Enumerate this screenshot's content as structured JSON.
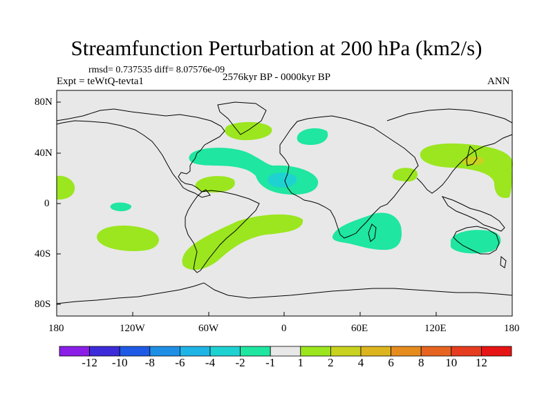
{
  "header": {
    "title": "Streamfunction Perturbation at 200 hPa (km2/s)",
    "stats": "rmsd= 0.737535 diff= 8.07576e-09",
    "left_label": "Expt = teWtQ-tevta1",
    "center_label": "2576kyr BP - 0000kyr BP",
    "right_label": "ANN"
  },
  "axes": {
    "lat_labels": [
      "80N",
      "40N",
      "0",
      "40S",
      "80S"
    ],
    "lon_labels": [
      "180",
      "120W",
      "60W",
      "0",
      "60E",
      "120E",
      "180"
    ]
  },
  "colorbar": {
    "labels": [
      "-12",
      "-10",
      "-8",
      "-6",
      "-4",
      "-2",
      "-1",
      "1",
      "2",
      "4",
      "6",
      "8",
      "10",
      "12"
    ],
    "colors": [
      "#8a1ee6",
      "#3c2bd9",
      "#1f5ae6",
      "#1f8fe6",
      "#1fb4e6",
      "#1fd2d2",
      "#1fe6a0",
      "#e8e8e8",
      "#9be61f",
      "#c8d21f",
      "#dcb41f",
      "#e68c1f",
      "#e6641f",
      "#e63c1f",
      "#e61414"
    ]
  },
  "map_colors": {
    "background": "#e8e8e8",
    "pos_1_2": "#9be61f",
    "pos_2_4": "#c8d21f",
    "neg_1_2": "#1fe6a0",
    "neg_2_4": "#1fd2d2"
  }
}
